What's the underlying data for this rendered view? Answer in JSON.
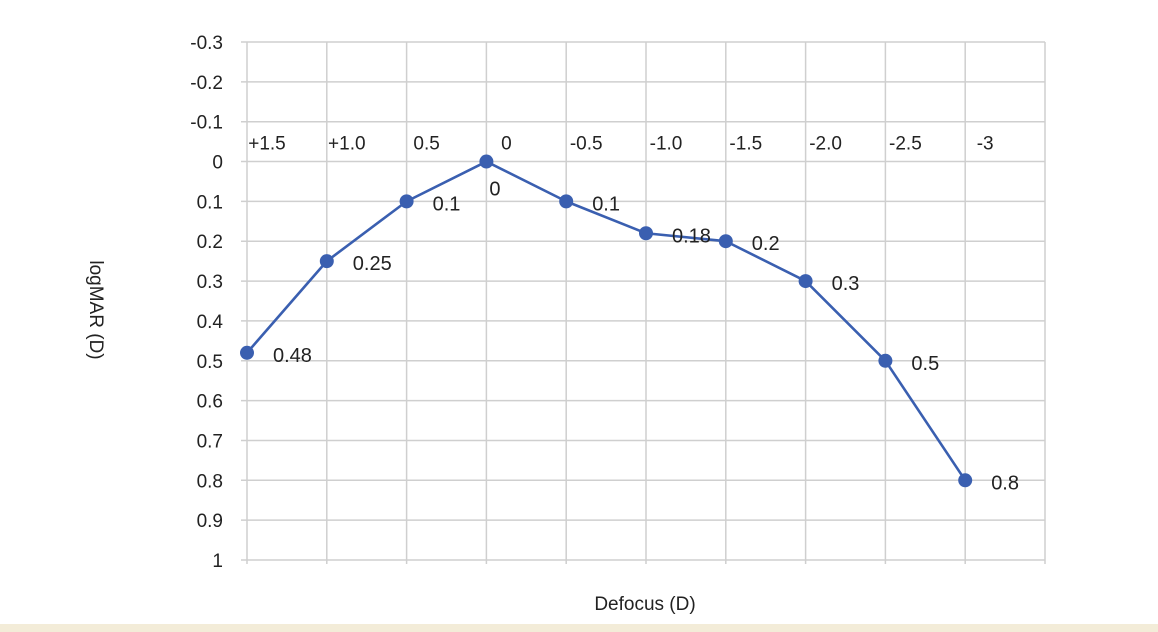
{
  "chart_data": {
    "type": "line",
    "title": "",
    "xlabel": "Defocus (D)",
    "ylabel": "logMAR (D)",
    "ylim": [
      -0.3,
      1
    ],
    "y_inverted": true,
    "y_ticks": [
      "-0.3",
      "-0.2",
      "-0.1",
      "0",
      "0.1",
      "0.2",
      "0.3",
      "0.4",
      "0.5",
      "0.6",
      "0.7",
      "0.8",
      "0.9",
      "1"
    ],
    "x_tick_labels": [
      "+1.5",
      "+1.0",
      "0.5",
      "0",
      "-0.5",
      "-1.0",
      "-1.5",
      "-2.0",
      "-2.5",
      "-3"
    ],
    "x": [
      "+1.5",
      "+1.0",
      "0.5",
      "0",
      "-0.5",
      "-1.0",
      "-1.5",
      "-2.0",
      "-2.5",
      "-3"
    ],
    "grid": true,
    "legend": "none",
    "series": [
      {
        "values": [
          0.48,
          0.25,
          0.1,
          0,
          0.1,
          0.18,
          0.2,
          0.3,
          0.5,
          0.8
        ],
        "data_labels": [
          "0.48",
          "0.25",
          "0.1",
          "0",
          "0.1",
          "0.18",
          "0.2",
          "0.3",
          "0.5",
          "0.8"
        ],
        "color": "#3a5fb0"
      }
    ]
  }
}
